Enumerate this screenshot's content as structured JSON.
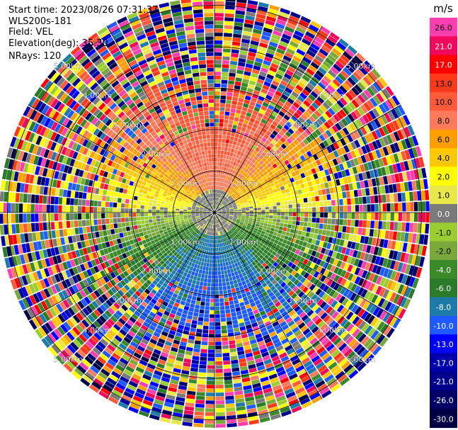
{
  "header": {
    "start_time": "Start time: 2023/08/26 07:31:37",
    "instrument": "WLS200s-181",
    "field": "Field: VEL",
    "elevation": "Elevation(deg): 35.30",
    "nrays": "NRays: 120"
  },
  "colorbar": {
    "unit": "m/s",
    "levels": [
      {
        "label": "26.0",
        "color": "#ff3eb0"
      },
      {
        "label": "21.0",
        "color": "#f0085a"
      },
      {
        "label": "17.0",
        "color": "#ff0000"
      },
      {
        "label": "13.0",
        "color": "#ff3a1a"
      },
      {
        "label": "10.0",
        "color": "#ff5a3a"
      },
      {
        "label": "8.0",
        "color": "#ff7a5a"
      },
      {
        "label": "6.0",
        "color": "#ff9e00"
      },
      {
        "label": "4.0",
        "color": "#ffc800"
      },
      {
        "label": "2.0",
        "color": "#ffff00"
      },
      {
        "label": "1.0",
        "color": "#e8e84a"
      },
      {
        "label": "0.0",
        "color": "#7a7a7a"
      },
      {
        "label": "-1.0",
        "color": "#9acd32"
      },
      {
        "label": "-2.0",
        "color": "#7aa83a"
      },
      {
        "label": "-4.0",
        "color": "#3a8a2a"
      },
      {
        "label": "-6.0",
        "color": "#2a7a2a"
      },
      {
        "label": "-8.0",
        "color": "#1e7aa8"
      },
      {
        "label": "-10.0",
        "color": "#1e5aff"
      },
      {
        "label": "-13.0",
        "color": "#0000ff"
      },
      {
        "label": "-17.0",
        "color": "#0000aa"
      },
      {
        "label": "-21.0",
        "color": "#00008a"
      },
      {
        "label": "-26.0",
        "color": "#000066"
      },
      {
        "label": "-30.0",
        "color": "#000044"
      }
    ]
  },
  "chart_data": {
    "type": "heatmap",
    "description_units": "km",
    "range_rings": [
      "1.00km",
      "2.00km",
      "3.00km",
      "4.00km",
      "5.00km"
    ],
    "range_ring_km": [
      1,
      2,
      3,
      4,
      5
    ],
    "max_range_km": 5.2,
    "rays": 120,
    "field": "VEL",
    "pattern": {
      "north_sector": "positive 4 to 21 m/s",
      "south_sector": "negative -1 to -10 m/s",
      "near_zero_band": "east-west"
    }
  }
}
